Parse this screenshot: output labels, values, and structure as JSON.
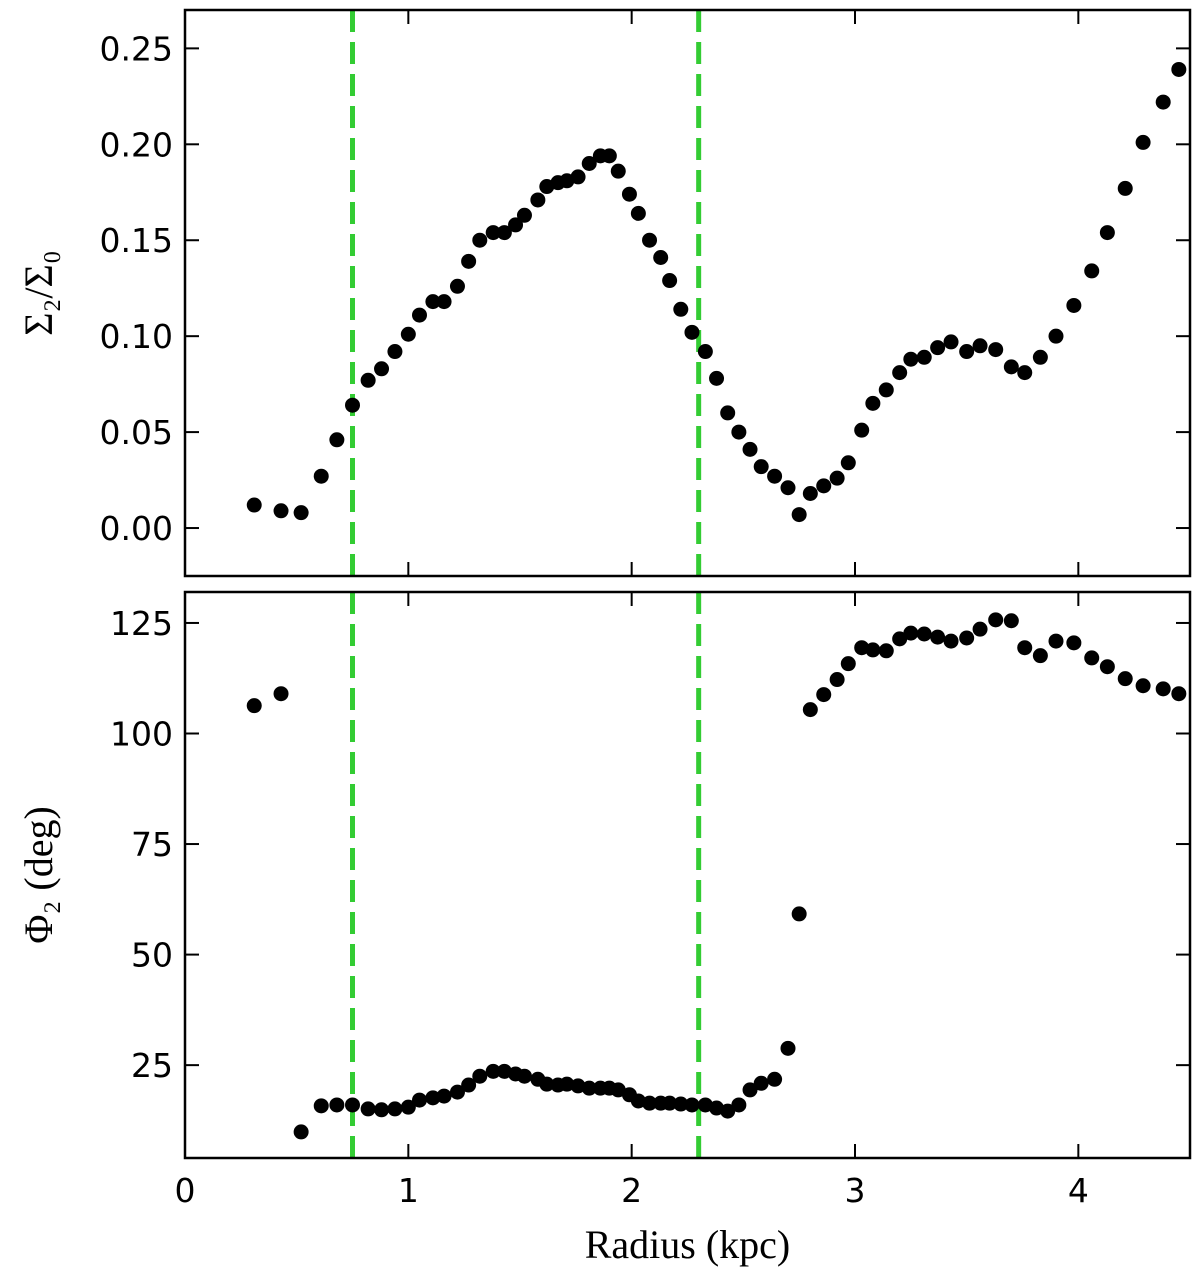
{
  "chart_data": [
    {
      "type": "scatter",
      "ylabel": "Σ₂/Σ₀",
      "xlim": [
        0,
        4.5
      ],
      "xticks": [
        0,
        1,
        2,
        3,
        4
      ],
      "ylim": [
        -0.025,
        0.27
      ],
      "yticks": [
        {
          "value": 0,
          "label": "0.00"
        },
        0.05,
        {
          "value": 0.1,
          "label": "0.10"
        },
        0.15,
        {
          "value": 0.2,
          "label": "0.20"
        },
        0.25
      ],
      "vlines": [
        0.75,
        2.3
      ],
      "vline_color": "#33cc33",
      "x": [
        0.31,
        0.43,
        0.52,
        0.61,
        0.68,
        0.75,
        0.82,
        0.88,
        0.94,
        1.0,
        1.05,
        1.11,
        1.16,
        1.22,
        1.27,
        1.32,
        1.38,
        1.43,
        1.48,
        1.52,
        1.58,
        1.62,
        1.67,
        1.71,
        1.76,
        1.81,
        1.86,
        1.9,
        1.94,
        1.99,
        2.03,
        2.08,
        2.13,
        2.17,
        2.22,
        2.27,
        2.33,
        2.38,
        2.43,
        2.48,
        2.53,
        2.58,
        2.64,
        2.7,
        2.75,
        2.8,
        2.86,
        2.92,
        2.97,
        3.03,
        3.08,
        3.14,
        3.2,
        3.25,
        3.31,
        3.37,
        3.43,
        3.5,
        3.56,
        3.63,
        3.7,
        3.76,
        3.83,
        3.9,
        3.98,
        4.06,
        4.13,
        4.21,
        4.29,
        4.38,
        4.45
      ],
      "series": [
        {
          "color": "#000000",
          "values": [
            0.012,
            0.009,
            0.008,
            0.027,
            0.046,
            0.064,
            0.077,
            0.083,
            0.092,
            0.101,
            0.111,
            0.118,
            0.118,
            0.126,
            0.139,
            0.15,
            0.154,
            0.154,
            0.158,
            0.163,
            0.171,
            0.178,
            0.18,
            0.181,
            0.183,
            0.19,
            0.194,
            0.194,
            0.186,
            0.174,
            0.164,
            0.15,
            0.141,
            0.129,
            0.114,
            0.102,
            0.092,
            0.078,
            0.06,
            0.05,
            0.041,
            0.032,
            0.027,
            0.021,
            0.007,
            0.018,
            0.022,
            0.026,
            0.034,
            0.051,
            0.065,
            0.072,
            0.081,
            0.088,
            0.089,
            0.094,
            0.097,
            0.092,
            0.095,
            0.093,
            0.084,
            0.081,
            0.089,
            0.1,
            0.116,
            0.134,
            0.154,
            0.177,
            0.201,
            0.222,
            0.239
          ]
        }
      ]
    },
    {
      "type": "scatter",
      "ylabel": "Φ₂ (deg)",
      "xlabel": "Radius (kpc)",
      "xlim": [
        0,
        4.5
      ],
      "xticks": [
        0,
        1,
        2,
        3,
        4
      ],
      "ylim": [
        4,
        132
      ],
      "yticks": [
        25,
        50,
        75,
        100,
        125
      ],
      "vlines": [
        0.75,
        2.3
      ],
      "vline_color": "#33cc33",
      "x": [
        0.31,
        0.43,
        0.52,
        0.61,
        0.68,
        0.75,
        0.82,
        0.88,
        0.94,
        1.0,
        1.05,
        1.11,
        1.16,
        1.22,
        1.27,
        1.32,
        1.38,
        1.43,
        1.48,
        1.52,
        1.58,
        1.62,
        1.67,
        1.71,
        1.76,
        1.81,
        1.86,
        1.9,
        1.94,
        1.99,
        2.03,
        2.08,
        2.13,
        2.17,
        2.22,
        2.27,
        2.33,
        2.38,
        2.43,
        2.48,
        2.53,
        2.58,
        2.64,
        2.7,
        2.75,
        2.8,
        2.86,
        2.92,
        2.97,
        3.03,
        3.08,
        3.14,
        3.2,
        3.25,
        3.31,
        3.37,
        3.43,
        3.5,
        3.56,
        3.63,
        3.7,
        3.76,
        3.83,
        3.9,
        3.98,
        4.06,
        4.13,
        4.21,
        4.29,
        4.38,
        4.45
      ],
      "series": [
        {
          "color": "#000000",
          "values": [
            106.3,
            109.0,
            9.9,
            15.8,
            16.0,
            16.0,
            15.1,
            14.9,
            15.1,
            15.5,
            17.1,
            17.6,
            18.0,
            18.9,
            20.5,
            22.5,
            23.6,
            23.6,
            23.0,
            22.5,
            21.8,
            20.7,
            20.5,
            20.7,
            20.3,
            19.8,
            19.8,
            19.8,
            19.4,
            18.3,
            16.9,
            16.4,
            16.4,
            16.4,
            16.2,
            16.0,
            16.0,
            15.3,
            14.6,
            16.0,
            19.4,
            20.9,
            21.8,
            28.8,
            59.2,
            105.4,
            108.8,
            112.2,
            115.8,
            119.4,
            118.9,
            118.7,
            121.4,
            122.7,
            122.5,
            121.8,
            120.9,
            121.6,
            123.6,
            125.7,
            125.5,
            119.4,
            117.6,
            120.9,
            120.5,
            117.1,
            115.1,
            112.4,
            110.8,
            110.1,
            109.0
          ]
        }
      ]
    }
  ]
}
